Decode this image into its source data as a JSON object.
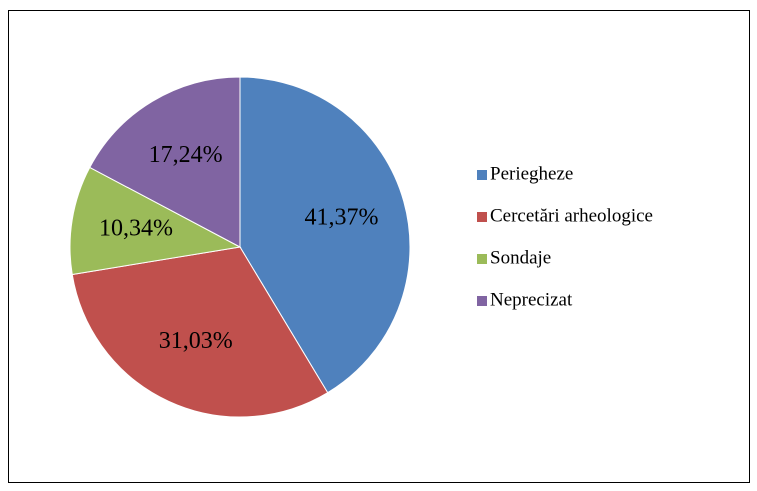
{
  "chart_data": {
    "type": "pie",
    "categories": [
      "Periegheze",
      "Cercetări arheologice",
      "Sondaje",
      "Neprecizat"
    ],
    "values": [
      41.37,
      31.03,
      10.34,
      17.24
    ],
    "value_labels": [
      "41,37%",
      "31,03%",
      "10,34%",
      "17,24%"
    ],
    "colors": [
      "#4f81bd",
      "#c0504d",
      "#9bbb59",
      "#8064a2"
    ],
    "legend": "right"
  }
}
